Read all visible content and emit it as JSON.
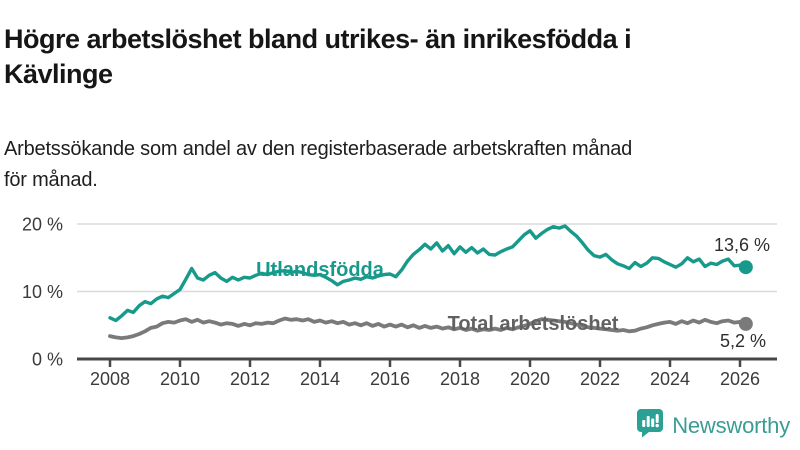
{
  "header": {
    "title_lines": [
      "Högre arbetslöshet bland utrikes- än inrikesfödda i",
      "Kävlinge"
    ],
    "subtitle_lines": [
      "Arbetssökande som andel av den registerbaserade arbetskraften månad",
      "för månad."
    ]
  },
  "chart_data": {
    "type": "line",
    "title": "Arbetssökande som andel av den registerbaserade arbetskraften månad för månad",
    "xlabel": "",
    "ylabel": "",
    "grid": "horizontal",
    "xlim": [
      2007,
      2027
    ],
    "ylim": [
      0,
      20
    ],
    "x_start": 2008,
    "x_step_months": 2,
    "x_ticks": [
      2008,
      2010,
      2012,
      2014,
      2016,
      2018,
      2020,
      2022,
      2024,
      2026
    ],
    "y_ticks": [
      0,
      10,
      20
    ],
    "y_tick_suffix": " %",
    "series": [
      {
        "name": "Utlandsfödda",
        "color": "#179a8c",
        "end_label": "13,6 %",
        "end_value": 13.6,
        "values": [
          6.1,
          5.7,
          6.4,
          7.2,
          6.9,
          7.9,
          8.5,
          8.2,
          8.9,
          9.3,
          9.1,
          9.7,
          10.3,
          11.8,
          13.4,
          12.0,
          11.7,
          12.4,
          12.8,
          12.0,
          11.5,
          12.1,
          11.7,
          12.1,
          12.0,
          12.4,
          12.7,
          12.5,
          12.8,
          13.0,
          13.1,
          12.8,
          13.0,
          12.8,
          12.5,
          12.4,
          12.5,
          12.1,
          11.6,
          11.0,
          11.5,
          11.7,
          12.0,
          11.8,
          12.2,
          12.0,
          12.3,
          12.5,
          12.6,
          12.2,
          13.2,
          14.5,
          15.5,
          16.2,
          17.0,
          16.3,
          17.2,
          16.0,
          16.8,
          15.6,
          16.6,
          15.8,
          16.5,
          15.7,
          16.3,
          15.5,
          15.4,
          15.9,
          16.3,
          16.6,
          17.5,
          18.4,
          19.0,
          17.9,
          18.6,
          19.2,
          19.6,
          19.4,
          19.7,
          18.9,
          18.2,
          17.2,
          16.1,
          15.3,
          15.1,
          15.5,
          14.7,
          14.1,
          13.8,
          13.4,
          14.3,
          13.7,
          14.2,
          15.0,
          14.9,
          14.4,
          14.0,
          13.6,
          14.1,
          15.0,
          14.4,
          14.8,
          13.7,
          14.2,
          14.0,
          14.5,
          14.8,
          13.8,
          13.9,
          13.6
        ]
      },
      {
        "name": "Total arbetslöshet",
        "color": "#7a7a7a",
        "label_color": "#616161",
        "end_label": "5,2 %",
        "end_value": 5.2,
        "values": [
          3.4,
          3.2,
          3.1,
          3.2,
          3.4,
          3.7,
          4.1,
          4.6,
          4.8,
          5.3,
          5.5,
          5.4,
          5.7,
          5.9,
          5.5,
          5.8,
          5.4,
          5.6,
          5.4,
          5.1,
          5.3,
          5.2,
          4.9,
          5.2,
          5.0,
          5.3,
          5.2,
          5.4,
          5.3,
          5.7,
          6.0,
          5.8,
          5.9,
          5.7,
          5.9,
          5.5,
          5.7,
          5.4,
          5.6,
          5.3,
          5.5,
          5.1,
          5.3,
          5.0,
          5.3,
          4.9,
          5.2,
          4.8,
          5.1,
          4.8,
          5.1,
          4.7,
          5.0,
          4.6,
          4.9,
          4.6,
          4.8,
          4.5,
          4.7,
          4.4,
          4.6,
          4.3,
          4.5,
          4.2,
          4.4,
          4.3,
          4.5,
          4.3,
          4.6,
          4.4,
          4.7,
          4.9,
          5.2,
          5.6,
          5.9,
          5.8,
          5.7,
          5.6,
          5.5,
          5.3,
          5.1,
          4.9,
          4.7,
          4.6,
          4.5,
          4.4,
          4.3,
          4.2,
          4.3,
          4.1,
          4.2,
          4.5,
          4.7,
          5.0,
          5.2,
          5.4,
          5.5,
          5.2,
          5.6,
          5.3,
          5.7,
          5.4,
          5.8,
          5.5,
          5.3,
          5.6,
          5.7,
          5.4,
          5.5,
          5.2
        ]
      }
    ]
  },
  "footer": {
    "brand": "Newsworthy",
    "logo_icon": "newsworthy-speech-bubble-bar-chart-icon",
    "brand_color": "#3a9c95",
    "icon_color": "#2ba195"
  }
}
